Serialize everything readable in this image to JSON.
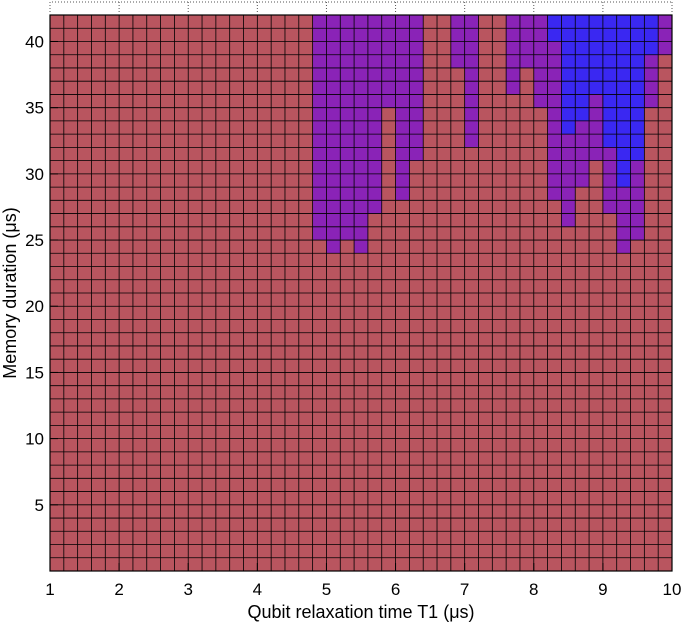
{
  "chart_data": {
    "type": "heatmap",
    "title": "",
    "xlabel": "Qubit relaxation time T1 (μs)",
    "ylabel": "Memory duration (μs)",
    "xlim": [
      1,
      10
    ],
    "ylim": [
      0,
      42
    ],
    "x_ticks": [
      "1",
      "2",
      "3",
      "4",
      "5",
      "6",
      "7",
      "8",
      "9",
      "10"
    ],
    "y_ticks": [
      "5",
      "10",
      "15",
      "20",
      "25",
      "30",
      "35",
      "40"
    ],
    "y_tick_values": [
      5,
      10,
      15,
      20,
      25,
      30,
      35,
      40
    ],
    "grid": "on",
    "cell_size_x": 0.2,
    "cell_size_y": 1,
    "colors": {
      "background": "#b9555f",
      "mid": "#8a23b7",
      "high": "#3a28f2"
    },
    "levels_legend": "0 = background, 1 = purple, 2 = blue",
    "regions": [
      {
        "x0": 4.8,
        "x1": 5.0,
        "y0": 25,
        "y1": 42,
        "level": 1
      },
      {
        "x0": 5.0,
        "x1": 5.2,
        "y0": 24,
        "y1": 42,
        "level": 1
      },
      {
        "x0": 5.2,
        "x1": 5.4,
        "y0": 25,
        "y1": 42,
        "level": 1
      },
      {
        "x0": 5.4,
        "x1": 5.6,
        "y0": 24,
        "y1": 42,
        "level": 1
      },
      {
        "x0": 5.6,
        "x1": 5.8,
        "y0": 27,
        "y1": 42,
        "level": 1
      },
      {
        "x0": 5.8,
        "x1": 6.0,
        "y0": 35,
        "y1": 42,
        "level": 1
      },
      {
        "x0": 6.0,
        "x1": 6.2,
        "y0": 28,
        "y1": 42,
        "level": 1
      },
      {
        "x0": 6.2,
        "x1": 6.4,
        "y0": 31,
        "y1": 42,
        "level": 1
      },
      {
        "x0": 6.8,
        "x1": 7.0,
        "y0": 38,
        "y1": 42,
        "level": 1
      },
      {
        "x0": 7.0,
        "x1": 7.2,
        "y0": 32,
        "y1": 42,
        "level": 1
      },
      {
        "x0": 7.6,
        "x1": 7.8,
        "y0": 36,
        "y1": 42,
        "level": 1
      },
      {
        "x0": 7.8,
        "x1": 8.0,
        "y0": 38,
        "y1": 42,
        "level": 1
      },
      {
        "x0": 8.0,
        "x1": 8.2,
        "y0": 35,
        "y1": 42,
        "level": 1
      },
      {
        "x0": 8.2,
        "x1": 8.4,
        "y0": 28,
        "y1": 42,
        "level": 1
      },
      {
        "x0": 8.4,
        "x1": 8.6,
        "y0": 26,
        "y1": 42,
        "level": 1
      },
      {
        "x0": 8.6,
        "x1": 8.8,
        "y0": 29,
        "y1": 42,
        "level": 1
      },
      {
        "x0": 8.8,
        "x1": 9.0,
        "y0": 31,
        "y1": 42,
        "level": 1
      },
      {
        "x0": 9.0,
        "x1": 9.2,
        "y0": 27,
        "y1": 42,
        "level": 1
      },
      {
        "x0": 9.2,
        "x1": 9.4,
        "y0": 24,
        "y1": 42,
        "level": 1
      },
      {
        "x0": 9.4,
        "x1": 9.6,
        "y0": 25,
        "y1": 42,
        "level": 1
      },
      {
        "x0": 9.6,
        "x1": 9.8,
        "y0": 35,
        "y1": 42,
        "level": 1
      },
      {
        "x0": 9.8,
        "x1": 10.0,
        "y0": 39,
        "y1": 42,
        "level": 1
      },
      {
        "x0": 8.2,
        "x1": 8.4,
        "y0": 40,
        "y1": 42,
        "level": 2
      },
      {
        "x0": 8.4,
        "x1": 8.6,
        "y0": 33,
        "y1": 42,
        "level": 2
      },
      {
        "x0": 8.6,
        "x1": 8.8,
        "y0": 34,
        "y1": 42,
        "level": 2
      },
      {
        "x0": 8.8,
        "x1": 9.0,
        "y0": 36,
        "y1": 42,
        "level": 2
      },
      {
        "x0": 9.0,
        "x1": 9.2,
        "y0": 32,
        "y1": 42,
        "level": 2
      },
      {
        "x0": 9.2,
        "x1": 9.4,
        "y0": 29,
        "y1": 42,
        "level": 2
      },
      {
        "x0": 9.4,
        "x1": 9.6,
        "y0": 31,
        "y1": 42,
        "level": 2
      },
      {
        "x0": 9.6,
        "x1": 9.8,
        "y0": 39,
        "y1": 42,
        "level": 2
      }
    ]
  }
}
